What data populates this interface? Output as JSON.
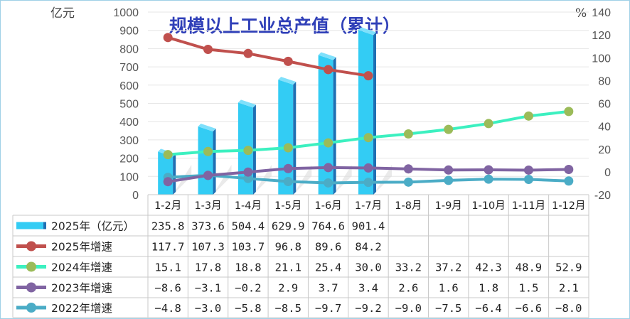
{
  "chart_data": {
    "type": "bar",
    "title": "规模以上工业总产值（累计）",
    "left_axis_unit": "亿元",
    "right_axis_unit": "%",
    "left_ylim": [
      0,
      1000
    ],
    "left_ticks": [
      0,
      100,
      200,
      300,
      400,
      500,
      600,
      700,
      800,
      900,
      1000
    ],
    "right_ylim": [
      -20,
      140
    ],
    "right_ticks": [
      -20,
      0,
      20,
      40,
      60,
      80,
      100,
      120,
      140
    ],
    "categories": [
      "1-2月",
      "1-3月",
      "1-4月",
      "1-5月",
      "1-6月",
      "1-7月",
      "1-8月",
      "1-9月",
      "1-10月",
      "1-11月",
      "1-12月"
    ],
    "bar_series": {
      "name": "2025年（亿元）",
      "axis": "left",
      "color": "#33ccf4",
      "values": [
        235.8,
        373.6,
        504.4,
        629.9,
        764.6,
        901.4
      ],
      "display": [
        "235.8",
        "373.6",
        "504.4",
        "629.9",
        "764.6",
        "901.4"
      ]
    },
    "line_series": [
      {
        "name": "2025年增速",
        "axis": "right",
        "color": "#c0504d",
        "values": [
          117.7,
          107.3,
          103.7,
          96.8,
          89.6,
          84.2
        ],
        "display": [
          "117.7",
          "107.3",
          "103.7",
          "96.8",
          "89.6",
          "84.2"
        ]
      },
      {
        "name": "2024年增速",
        "axis": "right",
        "color": "#3cf0c0",
        "marker": "#9bbb59",
        "values": [
          15.1,
          17.8,
          18.8,
          21.1,
          25.4,
          30.0,
          33.2,
          37.2,
          42.3,
          48.9,
          52.9
        ],
        "display": [
          "15.1",
          "17.8",
          "18.8",
          "21.1",
          "25.4",
          "30.0",
          "33.2",
          "37.2",
          "42.3",
          "48.9",
          "52.9"
        ]
      },
      {
        "name": "2023年增速",
        "axis": "right",
        "color": "#8064a2",
        "values": [
          -8.6,
          -3.1,
          -0.2,
          2.9,
          3.7,
          3.4,
          2.6,
          1.6,
          1.8,
          1.5,
          2.1
        ],
        "display": [
          "−8.6",
          "−3.1",
          "−0.2",
          "2.9",
          "3.7",
          "3.4",
          "2.6",
          "1.6",
          "1.8",
          "1.5",
          "2.1"
        ]
      },
      {
        "name": "2022年增速",
        "axis": "right",
        "color": "#4bacc6",
        "values": [
          -4.8,
          -3.0,
          -5.8,
          -8.5,
          -9.7,
          -9.2,
          -9.0,
          -7.5,
          -6.4,
          -6.6,
          -8.0
        ],
        "display": [
          "−4.8",
          "−3.0",
          "−5.8",
          "−8.5",
          "−9.7",
          "−9.2",
          "−9.0",
          "−7.5",
          "−6.4",
          "−6.6",
          "−8.0"
        ]
      }
    ],
    "grid": true,
    "legend": "data-table-left"
  }
}
